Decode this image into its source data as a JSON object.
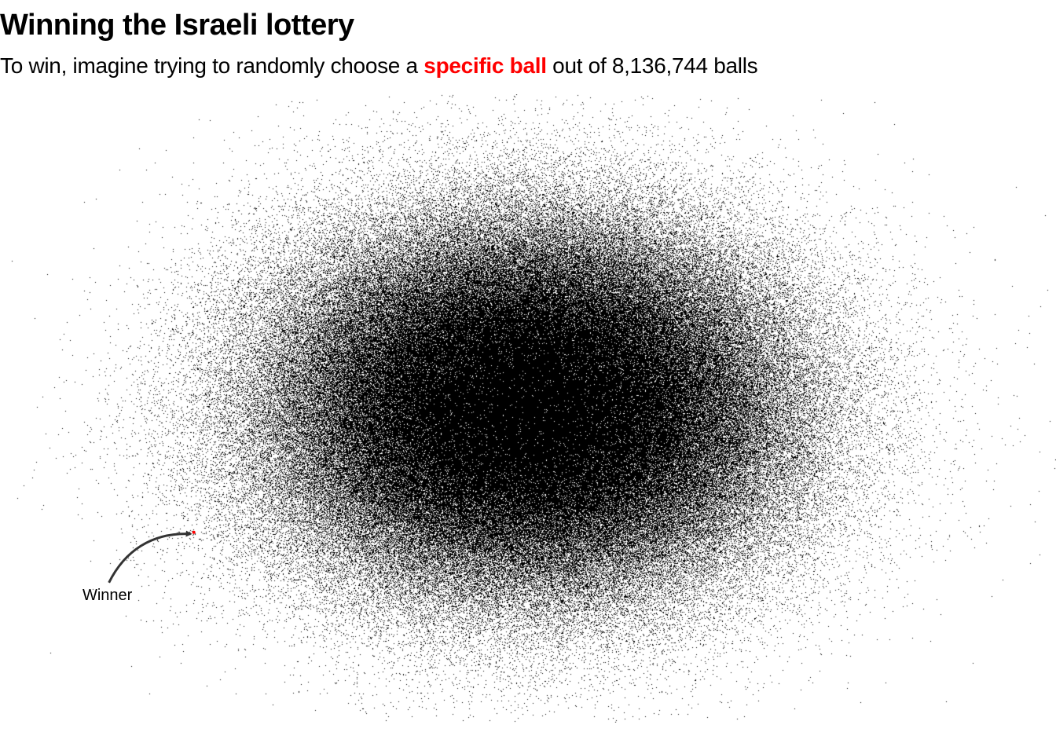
{
  "header": {
    "title": "Winning the Israeli lottery",
    "subtitle_before": "To win, imagine trying to randomly choose a ",
    "subtitle_highlight": "specific ball",
    "subtitle_after": " out of 8,136,744 balls"
  },
  "colors": {
    "text": "#000000",
    "points": "#000000",
    "highlight": "#ff0000",
    "arrow": "#333333",
    "background": "#ffffff"
  },
  "chart_data": {
    "type": "scatter",
    "title": "Winning the Israeli lottery",
    "subtitle": "To win, imagine trying to randomly choose a specific ball out of 8,136,744 balls",
    "total_points": 8136744,
    "distribution": "bivariate normal",
    "x_mean": 0,
    "y_mean": 0,
    "x_sd": 1,
    "y_sd": 1,
    "xlim": [
      -4.2,
      4.2
    ],
    "ylim": [
      -3.6,
      3.6
    ],
    "axes_visible": false,
    "grid": false,
    "legend": "none",
    "highlighted_point": {
      "label": "Winner",
      "x": -2.74,
      "y": -1.42,
      "color": "#ff0000"
    },
    "annotations": [
      {
        "text": "Winner",
        "target": "highlighted_point",
        "arrow": "curved"
      }
    ]
  }
}
